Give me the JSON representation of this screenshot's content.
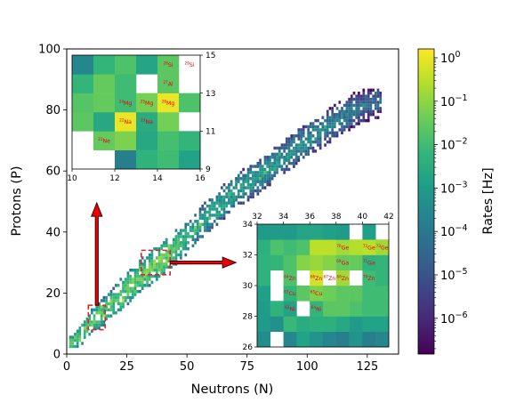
{
  "chart_data": [
    {
      "type": "heatmap",
      "title": "",
      "xlabel": "Neutrons (N)",
      "ylabel": "Protons (P)",
      "xlim": [
        0,
        138
      ],
      "ylim": [
        0,
        100
      ],
      "xticks": [
        0,
        25,
        50,
        75,
        100,
        125
      ],
      "yticks": [
        0,
        20,
        40,
        60,
        80,
        100
      ],
      "grid": false,
      "colormap": "viridis",
      "colorbar": {
        "label": "Rates [Hz]",
        "scale": "log",
        "range": [
          1.5e-07,
          1.6
        ],
        "ticks": [
          {
            "value": 1e-06,
            "label": "10",
            "exp": "−6"
          },
          {
            "value": 1e-05,
            "label": "10",
            "exp": "−5"
          },
          {
            "value": 0.0001,
            "label": "10",
            "exp": "−4"
          },
          {
            "value": 0.001,
            "label": "10",
            "exp": "−3"
          },
          {
            "value": 0.01,
            "label": "10",
            "exp": "−2"
          },
          {
            "value": 0.1,
            "label": "10",
            "exp": "−1"
          },
          {
            "value": 1,
            "label": "10",
            "exp": "0"
          }
        ]
      },
      "band": {
        "centerline_N": [
          2,
          10,
          20,
          30,
          40,
          50,
          60,
          70,
          80,
          90,
          100,
          110,
          120,
          128
        ],
        "centerline_Z": [
          3,
          10,
          17,
          25,
          31,
          38,
          46,
          53,
          58,
          64,
          70,
          75,
          80,
          82
        ],
        "log10_rate_center": [
          -1.2,
          -1.0,
          -1.2,
          -1.0,
          -0.6,
          -2.0,
          -2.2,
          -2.4,
          -2.6,
          -2.8,
          -3.0,
          -3.3,
          -3.6,
          -4.0
        ]
      },
      "highlight_regions": [
        {
          "N_range": [
            9,
            16
          ],
          "Z_range": [
            8,
            16
          ]
        },
        {
          "N_range": [
            31,
            43
          ],
          "Z_range": [
            26,
            34
          ]
        }
      ],
      "arrows": [
        {
          "from": "lower-left box",
          "direction": "up",
          "to": "upper-left inset"
        },
        {
          "from": "middle box",
          "direction": "right",
          "to": "lower-right inset"
        }
      ]
    },
    {
      "type": "heatmap",
      "name": "upper-left inset",
      "xlim": [
        10,
        16
      ],
      "ylim": [
        9,
        15
      ],
      "xticks": [
        10,
        12,
        14,
        16
      ],
      "yticks": [
        9,
        11,
        13,
        15
      ],
      "yaxis_side": "right",
      "N_start": 10,
      "Z_start": 9,
      "log10_grid_rows_bottom_to_top": [
        [
          null,
          null,
          -3.8,
          -2.3,
          -2.0,
          -2.8
        ],
        [
          null,
          -1.5,
          -1.2,
          -2.6,
          -1.9,
          -2.2
        ],
        [
          -1.6,
          -2.6,
          0.0,
          -2.5,
          -1.3,
          null
        ],
        [
          -1.7,
          -1.5,
          -2.0,
          -1.3,
          0.0,
          -1.8
        ],
        [
          -2.2,
          -1.5,
          -2.0,
          null,
          -1.6,
          null
        ],
        [
          -3.6,
          -2.2,
          -1.8,
          -2.7,
          -1.6,
          null
        ]
      ],
      "labels": [
        {
          "N": 11,
          "Z": 10,
          "mass": "21",
          "sym": "Ne"
        },
        {
          "N": 12,
          "Z": 11,
          "mass": "22",
          "sym": "Na"
        },
        {
          "N": 13,
          "Z": 11,
          "mass": "23",
          "sym": "Na"
        },
        {
          "N": 12,
          "Z": 12,
          "mass": "24",
          "sym": "Mg"
        },
        {
          "N": 13,
          "Z": 12,
          "mass": "25",
          "sym": "Mg"
        },
        {
          "N": 14,
          "Z": 12,
          "mass": "26",
          "sym": "Mg"
        },
        {
          "N": 14,
          "Z": 13,
          "mass": "27",
          "sym": "Al"
        },
        {
          "N": 14,
          "Z": 14,
          "mass": "28",
          "sym": "Si"
        },
        {
          "N": 15,
          "Z": 14,
          "mass": "29",
          "sym": "Si"
        }
      ]
    },
    {
      "type": "heatmap",
      "name": "lower-right inset",
      "xlim": [
        32,
        42
      ],
      "ylim": [
        26,
        34
      ],
      "xticks": [
        32,
        34,
        36,
        38,
        40,
        42
      ],
      "yticks": [
        26,
        28,
        30,
        32,
        34
      ],
      "xaxis_side": "top",
      "N_start": 32,
      "Z_start": 26,
      "log10_grid_rows_bottom_to_top": [
        [
          -3.4,
          null,
          -3.6,
          -2.8,
          -3.2,
          -3.6,
          -3.8,
          -3.2,
          -3.8,
          -3.6
        ],
        [
          -3.0,
          -3.3,
          -2.1,
          -2.5,
          -2.4,
          -2.4,
          -2.6,
          -3.0,
          -2.8,
          -2.8
        ],
        [
          -3.0,
          -2.3,
          -2.8,
          null,
          -2.2,
          -1.6,
          -1.6,
          -1.8,
          -2.0,
          -2.0
        ],
        [
          -2.9,
          null,
          -2.2,
          -1.6,
          -1.2,
          -1.4,
          -1.6,
          -1.6,
          -2.0,
          -2.0
        ],
        [
          -2.3,
          null,
          -1.8,
          null,
          -0.3,
          null,
          -0.8,
          null,
          -2.0,
          -2.2
        ],
        [
          -2.3,
          -2.2,
          -1.8,
          -1.1,
          -0.9,
          -1.1,
          -1.5,
          -1.5,
          -2.3,
          -2.2
        ],
        [
          -2.4,
          -1.8,
          -2.0,
          -1.8,
          -0.5,
          -0.5,
          -0.8,
          -0.6,
          -0.5,
          -0.8
        ],
        [
          -3.0,
          -3.0,
          -3.0,
          -2.7,
          -2.7,
          -2.9,
          -3.0,
          null,
          -2.9,
          null
        ]
      ],
      "labels": [
        {
          "N": 34,
          "Z": 28,
          "mass": "62",
          "sym": "Ni"
        },
        {
          "N": 36,
          "Z": 28,
          "mass": "64",
          "sym": "Ni"
        },
        {
          "N": 34,
          "Z": 29,
          "mass": "63",
          "sym": "Cu"
        },
        {
          "N": 36,
          "Z": 29,
          "mass": "65",
          "sym": "Cu"
        },
        {
          "N": 34,
          "Z": 30,
          "mass": "64",
          "sym": "Zn"
        },
        {
          "N": 36,
          "Z": 30,
          "mass": "66",
          "sym": "Zn"
        },
        {
          "N": 37,
          "Z": 30,
          "mass": "67",
          "sym": "Zn"
        },
        {
          "N": 38,
          "Z": 30,
          "mass": "68",
          "sym": "Zn"
        },
        {
          "N": 40,
          "Z": 30,
          "mass": "70",
          "sym": "Zn"
        },
        {
          "N": 38,
          "Z": 31,
          "mass": "69",
          "sym": "Ga"
        },
        {
          "N": 40,
          "Z": 31,
          "mass": "71",
          "sym": "Ga"
        },
        {
          "N": 38,
          "Z": 32,
          "mass": "70",
          "sym": "Ge"
        },
        {
          "N": 40,
          "Z": 32,
          "mass": "72",
          "sym": "Ge"
        },
        {
          "N": 41,
          "Z": 32,
          "mass": "73",
          "sym": "Ge"
        }
      ]
    }
  ],
  "colors": {
    "label_text": "#e8000b",
    "highlight_box": "#d62728",
    "arrow_fill": "#e8000b",
    "arrow_edge": "#3b0000",
    "missing_cell": "#ffffff"
  }
}
